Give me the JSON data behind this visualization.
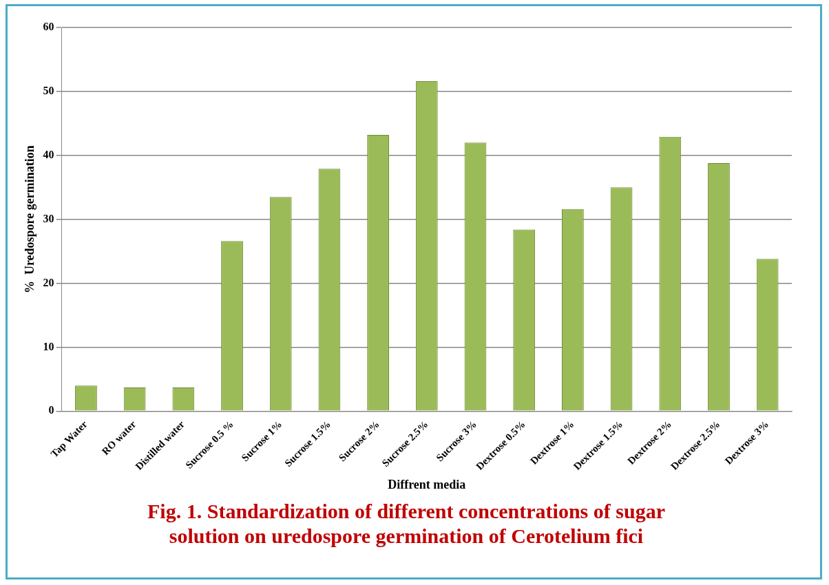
{
  "chart_data": {
    "type": "bar",
    "title": "Fig. 1. Standardization of different concentrations of sugar solution on uredospore germination of Cerotelium  fici",
    "xlabel": "Diffrent media",
    "ylabel": "%  Uredospore germination",
    "categories": [
      "Tap Water",
      "RO water",
      "Distilled water",
      "Sucrose 0.5 %",
      "Sucrose 1%",
      "Sucrose 1.5%",
      "Sucrose 2%",
      "Sucrose 2.5%",
      "Sucrose 3%",
      "Dextrose 0.5%",
      "Dextrose 1%",
      "Dextrose 1.5%",
      "Dextrose 2%",
      "Dextrose 2.5%",
      "Dextrose 3%"
    ],
    "values": [
      4,
      3.7,
      3.7,
      26.6,
      33.5,
      37.9,
      43.2,
      51.6,
      42,
      28.4,
      31.6,
      35,
      42.9,
      38.8,
      23.8
    ],
    "color": "#9bbb59",
    "ylim": [
      0,
      60
    ],
    "yticks": [
      0,
      10,
      20,
      30,
      40,
      50,
      60
    ],
    "grid": "y",
    "legend": false
  }
}
